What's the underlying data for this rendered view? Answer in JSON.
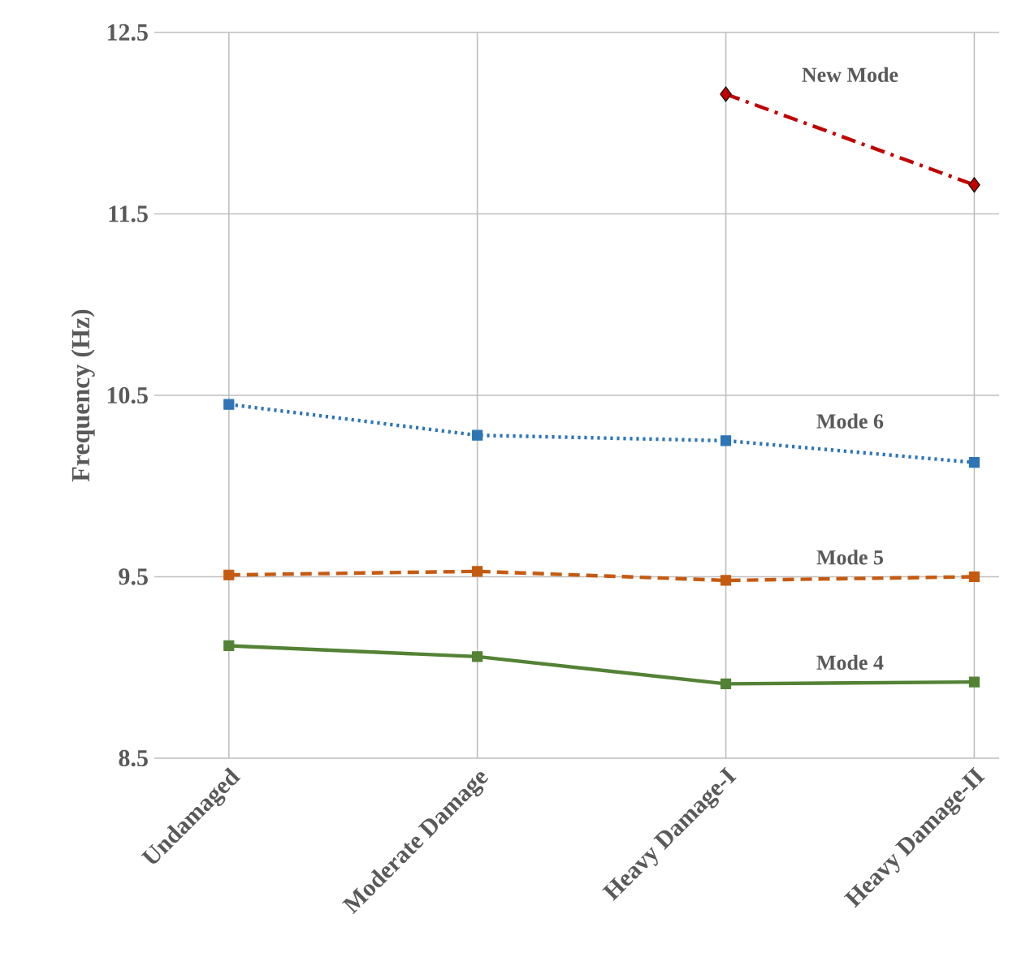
{
  "chart_data": {
    "type": "line",
    "ylabel": "Frequency (Hz)",
    "categories": [
      "Undamaged",
      "Moderate Damage",
      "Heavy Damage-I",
      "Heavy Damage-II"
    ],
    "series": [
      {
        "name": "New Mode",
        "color": "#c00000",
        "values": [
          null,
          null,
          12.16,
          11.66
        ],
        "marker": "diamond",
        "line_style": "dashdot"
      },
      {
        "name": "Mode 6",
        "color": "#2e75b6",
        "values": [
          10.45,
          10.28,
          10.25,
          10.13
        ],
        "marker": "square",
        "line_style": "dotted"
      },
      {
        "name": "Mode 5",
        "color": "#c55a11",
        "values": [
          9.51,
          9.53,
          9.48,
          9.5
        ],
        "marker": "square",
        "line_style": "dashed"
      },
      {
        "name": "Mode 4",
        "color": "#548235",
        "values": [
          9.12,
          9.06,
          8.91,
          8.92
        ],
        "marker": "square",
        "line_style": "solid"
      }
    ],
    "ylim": [
      8.5,
      12.5
    ],
    "yticks": [
      {
        "value": 8.5,
        "label": "8.5"
      },
      {
        "value": 9.5,
        "label": "9.5"
      },
      {
        "value": 10.5,
        "label": "10.5"
      },
      {
        "value": 11.5,
        "label": "11.5"
      },
      {
        "value": 12.5,
        "label": "12.5"
      }
    ],
    "grid": true,
    "legend": false
  }
}
